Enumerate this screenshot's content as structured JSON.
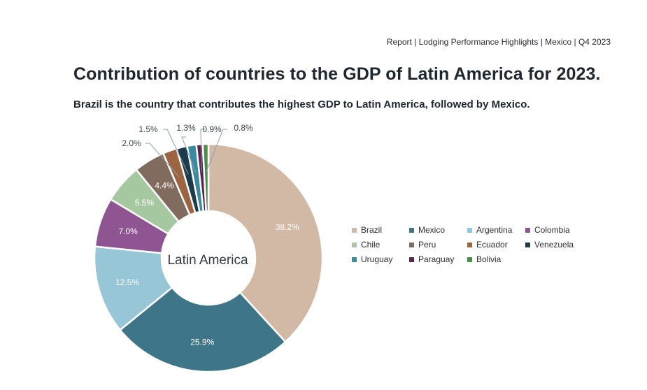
{
  "header": {
    "breadcrumb": "Report |  Lodging  Performance Highlights |  Mexico | Q4 2023"
  },
  "title": "Contribution of countries to the GDP of Latin America for 2023.",
  "subtitle": "Brazil is the country that contributes the highest GDP to Latin America, followed by Mexico.",
  "chart_data": {
    "type": "pie",
    "variant": "donut",
    "center_label": "Latin America",
    "title": "Contribution of countries to the GDP of Latin America for 2023.",
    "legend_position": "right",
    "slices": [
      {
        "label": "Brazil",
        "value": 38.2,
        "display": "38.2%",
        "color": "#d1b9a6"
      },
      {
        "label": "Mexico",
        "value": 25.9,
        "display": "25.9%",
        "color": "#3f7588"
      },
      {
        "label": "Argentina",
        "value": 12.5,
        "display": "12.5%",
        "color": "#97c6d6"
      },
      {
        "label": "Colombia",
        "value": 7.0,
        "display": "7.0%",
        "color": "#8e5592"
      },
      {
        "label": "Chile",
        "value": 5.5,
        "display": "5.5%",
        "color": "#a5c8a0"
      },
      {
        "label": "Peru",
        "value": 4.4,
        "display": "4.4%",
        "color": "#806b5e"
      },
      {
        "label": "Ecuador",
        "value": 2.0,
        "display": "2.0%",
        "color": "#9c6440"
      },
      {
        "label": "Venezuela",
        "value": 1.5,
        "display": "1.5%",
        "color": "#1d3b4a"
      },
      {
        "label": "Uruguay",
        "value": 1.3,
        "display": "1.3%",
        "color": "#3a8aa0"
      },
      {
        "label": "Paraguay",
        "value": 0.9,
        "display": "0.9%",
        "color": "#5a2450"
      },
      {
        "label": "Bolivia",
        "value": 0.8,
        "display": "0.8%",
        "color": "#4e8a4e"
      }
    ]
  }
}
